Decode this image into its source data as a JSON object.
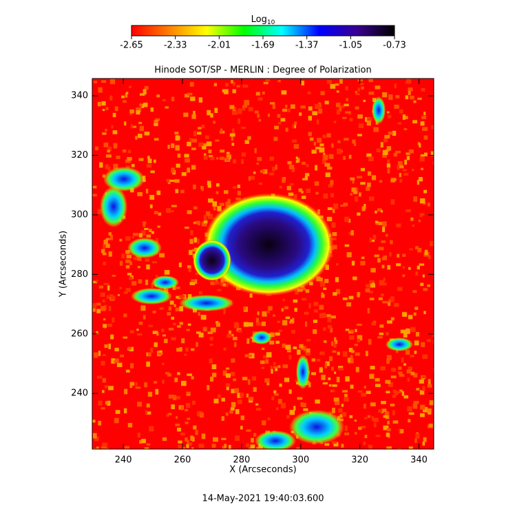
{
  "chart_data": {
    "type": "image",
    "title": "Hinode SOT/SP - MERLIN : Degree of Polarization",
    "x_label": "X (Arcseconds)",
    "y_label": "Y (Arcseconds)",
    "xlim": [
      229.5,
      345
    ],
    "xticks": [
      240,
      260,
      280,
      300,
      320,
      340
    ],
    "ylim": [
      221.3,
      345.8
    ],
    "yticks": [
      240,
      260,
      280,
      300,
      320,
      340
    ],
    "colorbar_label": "Log",
    "colorbar_label_sub": "10",
    "clim": [
      -2.65,
      -0.73
    ],
    "cticks": [
      -2.65,
      -2.33,
      -2.01,
      -1.69,
      -1.37,
      -1.05,
      -0.73
    ],
    "colormap": [
      "#ff0000",
      "#ff8000",
      "#ffff00",
      "#00ff00",
      "#00ffff",
      "#0000ff",
      "#3a0090",
      "#000000"
    ],
    "footer": "14-May-2021 19:40:03.600"
  }
}
